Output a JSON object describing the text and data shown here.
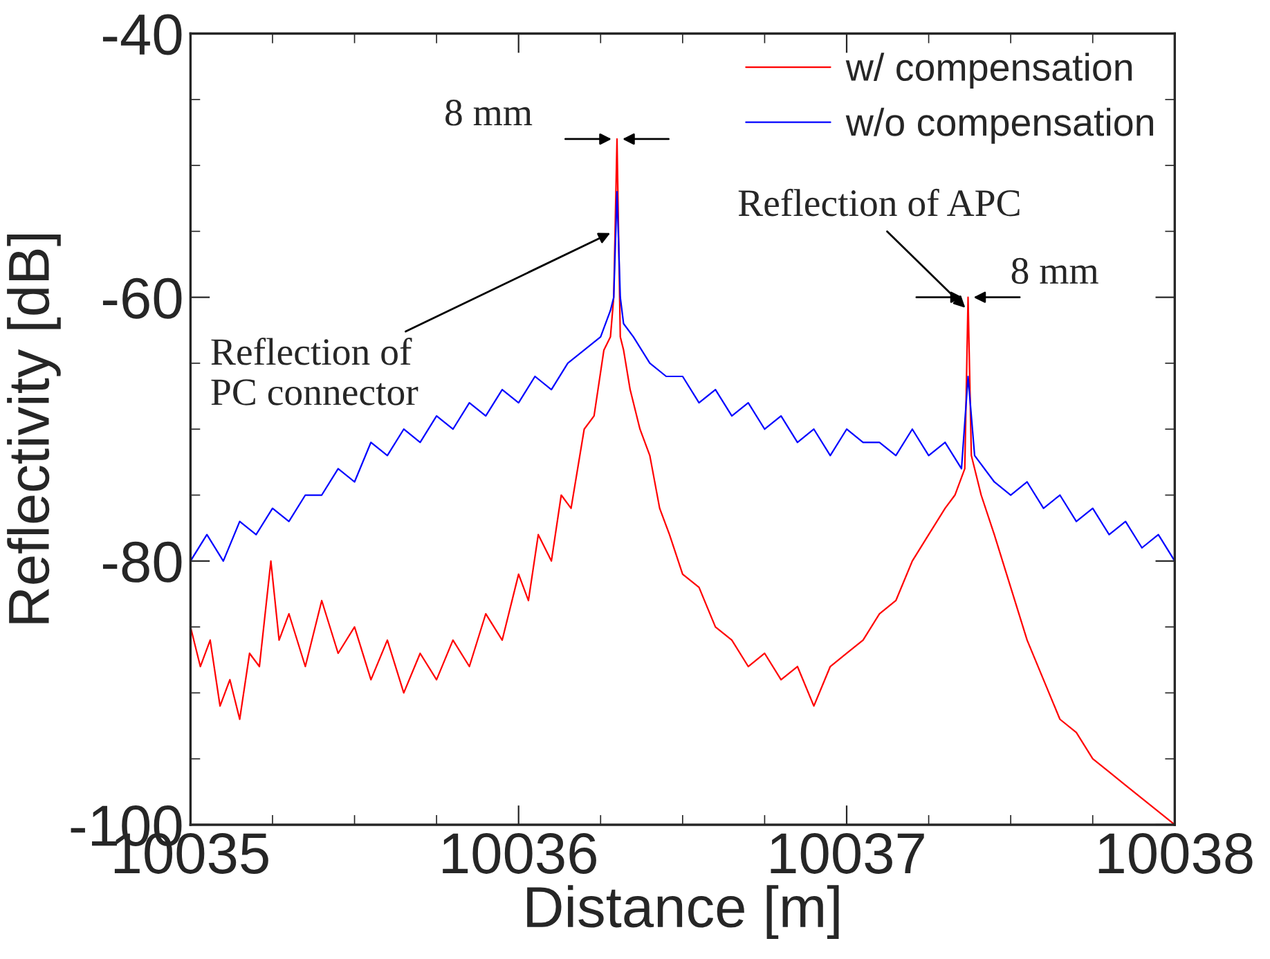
{
  "chart_data": {
    "type": "line",
    "xlabel": "Distance [m]",
    "ylabel": "Reflectivity [dB]",
    "xlim": [
      10035,
      10038
    ],
    "ylim": [
      -100,
      -40
    ],
    "xticks": [
      10035,
      10036,
      10037,
      10038
    ],
    "yticks": [
      -100,
      -80,
      -60,
      -40
    ],
    "grid": false,
    "legend": "top right",
    "marker": "none",
    "line_style": "solid",
    "series": [
      {
        "name": "w/ compensation",
        "color": "#ff0000",
        "x": [
          10035.0,
          10035.03,
          10035.06,
          10035.09,
          10035.12,
          10035.15,
          10035.18,
          10035.21,
          10035.245,
          10035.27,
          10035.3,
          10035.35,
          10035.4,
          10035.45,
          10035.5,
          10035.55,
          10035.6,
          10035.65,
          10035.7,
          10035.75,
          10035.8,
          10035.85,
          10035.9,
          10035.95,
          10036.0,
          10036.03,
          10036.06,
          10036.1,
          10036.13,
          10036.16,
          10036.2,
          10036.23,
          10036.26,
          10036.28,
          10036.29,
          10036.3,
          10036.31,
          10036.32,
          10036.34,
          10036.37,
          10036.4,
          10036.43,
          10036.46,
          10036.5,
          10036.55,
          10036.6,
          10036.65,
          10036.7,
          10036.75,
          10036.8,
          10036.85,
          10036.9,
          10036.95,
          10037.0,
          10037.05,
          10037.1,
          10037.15,
          10037.2,
          10037.25,
          10037.3,
          10037.33,
          10037.36,
          10037.37,
          10037.38,
          10037.41,
          10037.45,
          10037.5,
          10037.55,
          10037.6,
          10037.65,
          10037.7,
          10037.75,
          10037.8,
          10037.85,
          10037.9,
          10037.95,
          10038.0
        ],
        "values": [
          -85,
          -88,
          -86,
          -91,
          -89,
          -92,
          -87,
          -88,
          -80,
          -86,
          -84,
          -88,
          -83,
          -87,
          -85,
          -89,
          -86,
          -90,
          -87,
          -89,
          -86,
          -88,
          -84,
          -86,
          -81,
          -83,
          -78,
          -80,
          -75,
          -76,
          -70,
          -69,
          -64,
          -63,
          -60,
          -48,
          -63,
          -64,
          -67,
          -70,
          -72,
          -76,
          -78,
          -81,
          -82,
          -85,
          -86,
          -88,
          -87,
          -89,
          -88,
          -91,
          -88,
          -87,
          -86,
          -84,
          -83,
          -80,
          -78,
          -76,
          -75,
          -73,
          -60,
          -72,
          -75,
          -78,
          -82,
          -86,
          -89,
          -92,
          -93,
          -95,
          -96,
          -97,
          -98,
          -99,
          -100
        ]
      },
      {
        "name": "w/o compensation",
        "color": "#0000ff",
        "x": [
          10035.0,
          10035.05,
          10035.1,
          10035.15,
          10035.2,
          10035.25,
          10035.3,
          10035.35,
          10035.4,
          10035.45,
          10035.5,
          10035.55,
          10035.6,
          10035.65,
          10035.7,
          10035.75,
          10035.8,
          10035.85,
          10035.9,
          10035.95,
          10036.0,
          10036.05,
          10036.1,
          10036.15,
          10036.2,
          10036.25,
          10036.28,
          10036.29,
          10036.3,
          10036.31,
          10036.32,
          10036.35,
          10036.4,
          10036.45,
          10036.5,
          10036.55,
          10036.6,
          10036.65,
          10036.7,
          10036.75,
          10036.8,
          10036.85,
          10036.9,
          10036.95,
          10037.0,
          10037.05,
          10037.1,
          10037.15,
          10037.2,
          10037.25,
          10037.3,
          10037.35,
          10037.37,
          10037.39,
          10037.45,
          10037.5,
          10037.55,
          10037.6,
          10037.65,
          10037.7,
          10037.75,
          10037.8,
          10037.85,
          10037.9,
          10037.95,
          10038.0
        ],
        "values": [
          -80,
          -78,
          -80,
          -77,
          -78,
          -76,
          -77,
          -75,
          -75,
          -73,
          -74,
          -71,
          -72,
          -70,
          -71,
          -69,
          -70,
          -68,
          -69,
          -67,
          -68,
          -66,
          -67,
          -65,
          -64,
          -63,
          -61,
          -60,
          -52,
          -60,
          -62,
          -63,
          -65,
          -66,
          -66,
          -68,
          -67,
          -69,
          -68,
          -70,
          -69,
          -71,
          -70,
          -72,
          -70,
          -71,
          -71,
          -72,
          -70,
          -72,
          -71,
          -73,
          -66,
          -72,
          -74,
          -75,
          -74,
          -76,
          -75,
          -77,
          -76,
          -78,
          -77,
          -79,
          -78,
          -80
        ]
      }
    ],
    "annotations": [
      {
        "text": "8 mm",
        "x": 10036.3,
        "y": -48
      },
      {
        "text": "Reflection of\nPC connector",
        "x": 10036.29,
        "y": -55
      },
      {
        "text": "Reflection of APC",
        "x": 10037.37,
        "y": -61
      },
      {
        "text": "8 mm",
        "x": 10037.37,
        "y": -60
      }
    ]
  }
}
